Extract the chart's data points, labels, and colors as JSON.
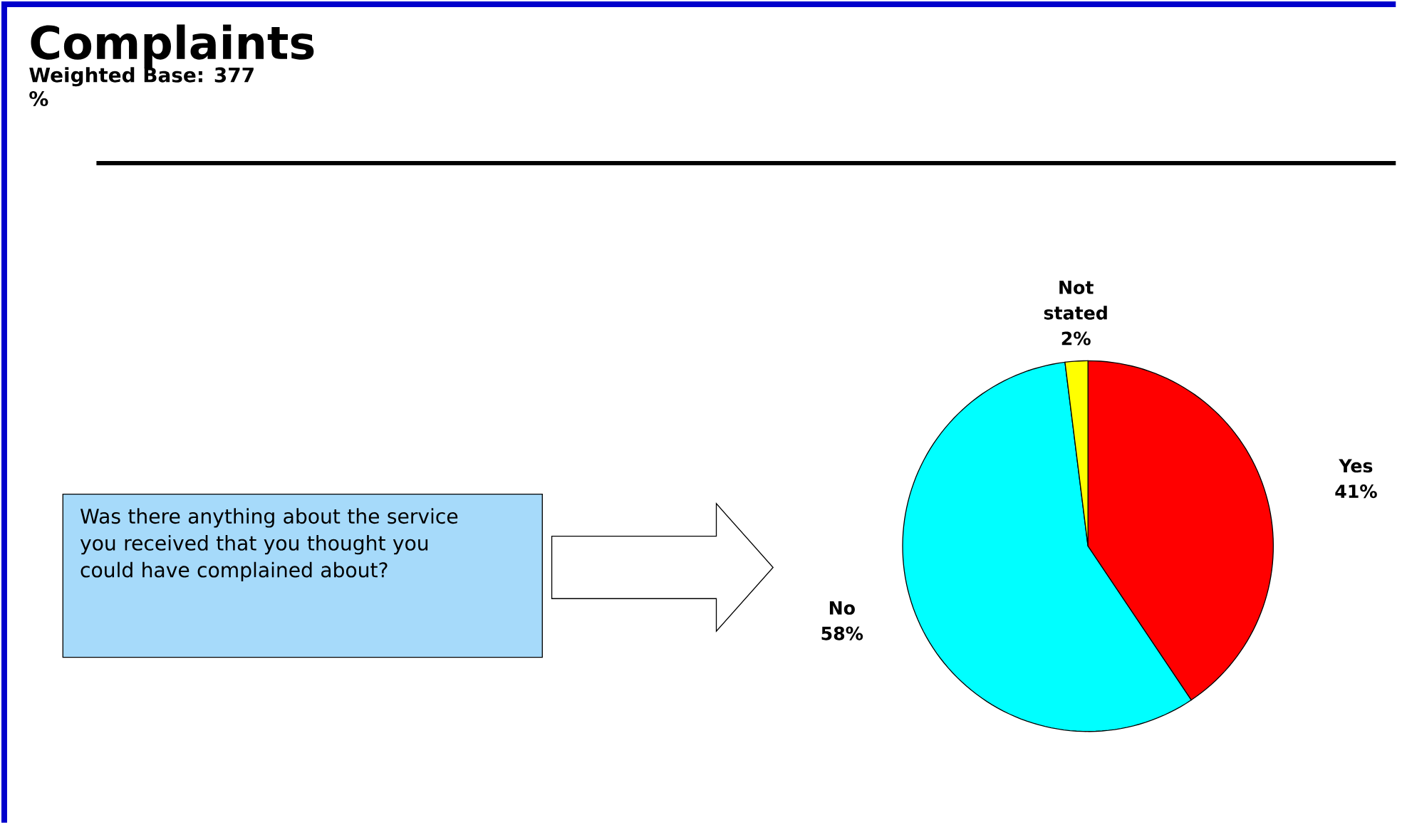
{
  "chart_data": {
    "type": "pie",
    "title": "Complaints",
    "subtitle": "Weighted Base: 377",
    "categories": [
      "Yes",
      "No",
      "Not stated"
    ],
    "values": [
      41,
      58,
      2
    ],
    "colors": [
      "#ff0000",
      "#00ffff",
      "#ffff00"
    ],
    "data_labels": true,
    "value_labels": [
      "41%",
      "58%",
      "2%"
    ],
    "annotations": [
      "%",
      "Was there anything about the service you received that you thought you could have complained about?"
    ]
  }
}
